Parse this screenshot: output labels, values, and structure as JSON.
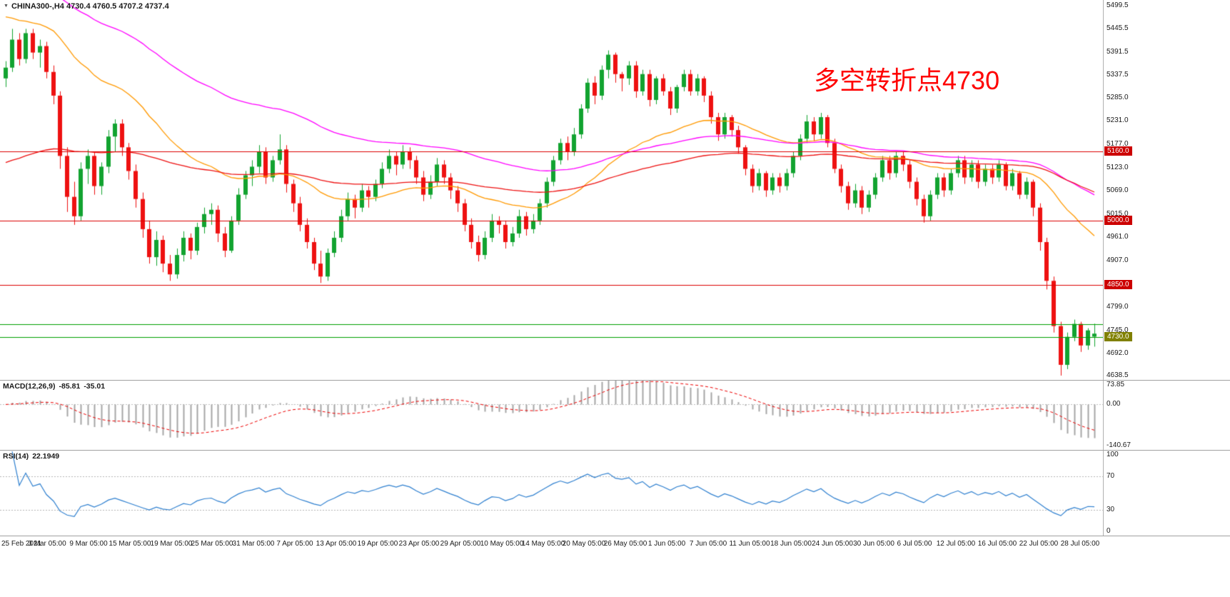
{
  "window": {
    "title_text": "CHINA300-,H4 4730.4 4760.5 4707.2 4737.4",
    "annotation": "多空转折点4730"
  },
  "colors": {
    "background": "#FFFFFF",
    "up": "#12A330",
    "down": "#EE1111",
    "annotation": "#FF0000",
    "hline_red": "#DD0000",
    "hline_green": "#00A000",
    "label_red_bg": "#CC0000",
    "label_olive_bg": "#808000",
    "macd_hist": "#A6A6A6",
    "macd_signal": "#EE0000",
    "rsi_line": "#2F80D0"
  },
  "chart_data": [
    {
      "type": "candlestick",
      "symbol": "CHINA300-",
      "timeframe": "H4",
      "current_bar": {
        "open": 4730.4,
        "high": 4760.5,
        "low": 4707.2,
        "close": 4737.4
      },
      "y_domain": [
        4630,
        5512
      ],
      "y_ticks": [
        "5499.5",
        "5445.5",
        "5391.5",
        "5337.5",
        "5285.0",
        "5231.0",
        "5177.0",
        "5123.0",
        "5069.0",
        "5015.0",
        "4961.0",
        "4907.0",
        "4853.0",
        "4799.0",
        "4745.0",
        "4692.0",
        "4638.5"
      ],
      "x_labels": [
        "25 Feb 2021",
        "3 Mar 05:00",
        "9 Mar 05:00",
        "15 Mar 05:00",
        "19 Mar 05:00",
        "25 Mar 05:00",
        "31 Mar 05:00",
        "7 Apr 05:00",
        "13 Apr 05:00",
        "19 Apr 05:00",
        "23 Apr 05:00",
        "29 Apr 05:00",
        "10 May 05:00",
        "14 May 05:00",
        "20 May 05:00",
        "26 May 05:00",
        "1 Jun 05:00",
        "7 Jun 05:00",
        "11 Jun 05:00",
        "18 Jun 05:00",
        "24 Jun 05:00",
        "30 Jun 05:00",
        "6 Jul 05:00",
        "12 Jul 05:00",
        "16 Jul 05:00",
        "22 Jul 05:00",
        "28 Jul 05:00"
      ],
      "up_color": "#12A330",
      "down_color": "#EE1111",
      "hlines": [
        {
          "value": 5160.0,
          "label": "5160.0",
          "color": "#DD0000",
          "label_bg": "#CC0000"
        },
        {
          "value": 5000.0,
          "label": "5000.0",
          "color": "#DD0000",
          "label_bg": "#CC0000"
        },
        {
          "value": 4850.0,
          "label": "4850.0",
          "color": "#DD0000",
          "label_bg": "#CC0000"
        },
        {
          "value": 4760.0,
          "label": "",
          "color": "#00A000",
          "label_bg": ""
        },
        {
          "value": 4730.0,
          "label": "4730.0",
          "color": "#00A000",
          "label_bg": "#808000"
        }
      ],
      "moving_averages": [
        {
          "period": 34,
          "color": "#FF9900",
          "seed": 5480
        },
        {
          "period": 80,
          "color": "#FF00FF",
          "seed": 5560
        },
        {
          "period": 100,
          "color": "#EE1111",
          "seed": 5130
        }
      ],
      "candles": [
        [
          5330,
          5370,
          5310,
          5355
        ],
        [
          5355,
          5445,
          5345,
          5420
        ],
        [
          5420,
          5435,
          5360,
          5375
        ],
        [
          5375,
          5445,
          5365,
          5435
        ],
        [
          5435,
          5445,
          5375,
          5390
        ],
        [
          5390,
          5420,
          5355,
          5405
        ],
        [
          5405,
          5415,
          5330,
          5345
        ],
        [
          5345,
          5360,
          5270,
          5290
        ],
        [
          5290,
          5300,
          5120,
          5150
        ],
        [
          5150,
          5170,
          5020,
          5055
        ],
        [
          5055,
          5090,
          4990,
          5010
        ],
        [
          5010,
          5135,
          5000,
          5120
        ],
        [
          5120,
          5165,
          5085,
          5150
        ],
        [
          5150,
          5160,
          5060,
          5080
        ],
        [
          5080,
          5135,
          5060,
          5125
        ],
        [
          5125,
          5210,
          5110,
          5195
        ],
        [
          5195,
          5235,
          5160,
          5225
        ],
        [
          5225,
          5235,
          5150,
          5170
        ],
        [
          5170,
          5180,
          5095,
          5115
        ],
        [
          5115,
          5130,
          5030,
          5050
        ],
        [
          5050,
          5065,
          4960,
          4980
        ],
        [
          4980,
          5000,
          4900,
          4915
        ],
        [
          4915,
          4975,
          4895,
          4955
        ],
        [
          4955,
          4965,
          4880,
          4900
        ],
        [
          4900,
          4920,
          4860,
          4875
        ],
        [
          4875,
          4935,
          4865,
          4920
        ],
        [
          4920,
          4975,
          4905,
          4960
        ],
        [
          4960,
          4970,
          4910,
          4930
        ],
        [
          4930,
          4995,
          4920,
          4985
        ],
        [
          4985,
          5030,
          4970,
          5015
        ],
        [
          5015,
          5040,
          4990,
          5025
        ],
        [
          5025,
          5035,
          4950,
          4970
        ],
        [
          4970,
          4985,
          4915,
          4930
        ],
        [
          4930,
          5010,
          4925,
          5000
        ],
        [
          5000,
          5075,
          4990,
          5060
        ],
        [
          5060,
          5115,
          5050,
          5105
        ],
        [
          5105,
          5140,
          5080,
          5125
        ],
        [
          5125,
          5175,
          5110,
          5160
        ],
        [
          5160,
          5170,
          5085,
          5100
        ],
        [
          5100,
          5150,
          5090,
          5140
        ],
        [
          5140,
          5200,
          5130,
          5165
        ],
        [
          5165,
          5175,
          5065,
          5085
        ],
        [
          5085,
          5095,
          5020,
          5040
        ],
        [
          5040,
          5055,
          4975,
          4990
        ],
        [
          4990,
          5005,
          4935,
          4950
        ],
        [
          4950,
          4960,
          4885,
          4900
        ],
        [
          4900,
          4930,
          4855,
          4870
        ],
        [
          4870,
          4935,
          4860,
          4925
        ],
        [
          4925,
          4975,
          4915,
          4960
        ],
        [
          4960,
          5025,
          4950,
          5010
        ],
        [
          5010,
          5065,
          5000,
          5050
        ],
        [
          5050,
          5060,
          5005,
          5030
        ],
        [
          5030,
          5085,
          5020,
          5070
        ],
        [
          5070,
          5080,
          5030,
          5055
        ],
        [
          5055,
          5095,
          5045,
          5085
        ],
        [
          5085,
          5135,
          5075,
          5120
        ],
        [
          5120,
          5165,
          5110,
          5150
        ],
        [
          5150,
          5160,
          5105,
          5130
        ],
        [
          5130,
          5175,
          5120,
          5160
        ],
        [
          5160,
          5170,
          5120,
          5140
        ],
        [
          5140,
          5150,
          5085,
          5100
        ],
        [
          5100,
          5115,
          5045,
          5060
        ],
        [
          5060,
          5105,
          5050,
          5090
        ],
        [
          5090,
          5145,
          5080,
          5130
        ],
        [
          5130,
          5140,
          5085,
          5100
        ],
        [
          5100,
          5110,
          5050,
          5070
        ],
        [
          5070,
          5080,
          5020,
          5040
        ],
        [
          5040,
          5050,
          4975,
          4990
        ],
        [
          4990,
          5005,
          4935,
          4950
        ],
        [
          4950,
          4965,
          4905,
          4920
        ],
        [
          4920,
          4975,
          4910,
          4960
        ],
        [
          4960,
          5015,
          4950,
          5000
        ],
        [
          5000,
          5010,
          4970,
          4990
        ],
        [
          4990,
          5000,
          4935,
          4950
        ],
        [
          4950,
          4985,
          4940,
          4970
        ],
        [
          4970,
          5025,
          4960,
          5010
        ],
        [
          5010,
          5020,
          4965,
          4980
        ],
        [
          4980,
          5015,
          4970,
          5000
        ],
        [
          5000,
          5050,
          4990,
          5040
        ],
        [
          5040,
          5100,
          5030,
          5090
        ],
        [
          5090,
          5150,
          5080,
          5140
        ],
        [
          5140,
          5190,
          5130,
          5180
        ],
        [
          5180,
          5195,
          5140,
          5160
        ],
        [
          5160,
          5215,
          5150,
          5200
        ],
        [
          5200,
          5270,
          5190,
          5260
        ],
        [
          5260,
          5330,
          5250,
          5320
        ],
        [
          5320,
          5335,
          5270,
          5290
        ],
        [
          5290,
          5360,
          5280,
          5350
        ],
        [
          5350,
          5395,
          5330,
          5385
        ],
        [
          5385,
          5390,
          5320,
          5340
        ],
        [
          5340,
          5345,
          5300,
          5330
        ],
        [
          5330,
          5370,
          5315,
          5360
        ],
        [
          5360,
          5370,
          5285,
          5300
        ],
        [
          5300,
          5350,
          5290,
          5340
        ],
        [
          5340,
          5350,
          5265,
          5280
        ],
        [
          5280,
          5335,
          5270,
          5330
        ],
        [
          5330,
          5340,
          5290,
          5300
        ],
        [
          5300,
          5310,
          5245,
          5260
        ],
        [
          5260,
          5315,
          5250,
          5310
        ],
        [
          5310,
          5350,
          5300,
          5340
        ],
        [
          5340,
          5350,
          5290,
          5300
        ],
        [
          5300,
          5340,
          5290,
          5330
        ],
        [
          5330,
          5335,
          5275,
          5290
        ],
        [
          5290,
          5300,
          5225,
          5240
        ],
        [
          5240,
          5250,
          5185,
          5200
        ],
        [
          5200,
          5250,
          5190,
          5240
        ],
        [
          5240,
          5245,
          5195,
          5210
        ],
        [
          5210,
          5220,
          5155,
          5170
        ],
        [
          5170,
          5175,
          5105,
          5120
        ],
        [
          5120,
          5130,
          5065,
          5080
        ],
        [
          5080,
          5120,
          5070,
          5110
        ],
        [
          5110,
          5115,
          5055,
          5070
        ],
        [
          5070,
          5110,
          5060,
          5100
        ],
        [
          5100,
          5110,
          5065,
          5080
        ],
        [
          5080,
          5120,
          5070,
          5110
        ],
        [
          5110,
          5160,
          5100,
          5150
        ],
        [
          5150,
          5200,
          5140,
          5190
        ],
        [
          5190,
          5245,
          5180,
          5230
        ],
        [
          5230,
          5240,
          5185,
          5200
        ],
        [
          5200,
          5250,
          5190,
          5240
        ],
        [
          5240,
          5245,
          5170,
          5180
        ],
        [
          5180,
          5190,
          5110,
          5120
        ],
        [
          5120,
          5130,
          5065,
          5080
        ],
        [
          5080,
          5090,
          5025,
          5040
        ],
        [
          5040,
          5085,
          5030,
          5070
        ],
        [
          5070,
          5080,
          5015,
          5030
        ],
        [
          5030,
          5070,
          5020,
          5060
        ],
        [
          5060,
          5110,
          5050,
          5100
        ],
        [
          5100,
          5150,
          5090,
          5140
        ],
        [
          5140,
          5150,
          5095,
          5110
        ],
        [
          5110,
          5160,
          5100,
          5150
        ],
        [
          5150,
          5160,
          5115,
          5130
        ],
        [
          5130,
          5140,
          5075,
          5090
        ],
        [
          5090,
          5100,
          5035,
          5050
        ],
        [
          5050,
          5060,
          4995,
          5010
        ],
        [
          5010,
          5070,
          5000,
          5060
        ],
        [
          5060,
          5110,
          5050,
          5100
        ],
        [
          5100,
          5110,
          5055,
          5070
        ],
        [
          5070,
          5120,
          5060,
          5110
        ],
        [
          5110,
          5150,
          5100,
          5140
        ],
        [
          5140,
          5150,
          5085,
          5100
        ],
        [
          5100,
          5140,
          5090,
          5130
        ],
        [
          5130,
          5140,
          5075,
          5090
        ],
        [
          5090,
          5130,
          5080,
          5120
        ],
        [
          5120,
          5130,
          5085,
          5100
        ],
        [
          5100,
          5140,
          5090,
          5130
        ],
        [
          5130,
          5135,
          5070,
          5080
        ],
        [
          5080,
          5120,
          5070,
          5110
        ],
        [
          5110,
          5115,
          5050,
          5060
        ],
        [
          5060,
          5100,
          5050,
          5090
        ],
        [
          5090,
          5095,
          5010,
          5030
        ],
        [
          5030,
          5040,
          4930,
          4950
        ],
        [
          4950,
          4960,
          4840,
          4860
        ],
        [
          4860,
          4870,
          4740,
          4755
        ],
        [
          4755,
          4765,
          4640,
          4665
        ],
        [
          4665,
          4740,
          4655,
          4730
        ],
        [
          4730,
          4770,
          4720,
          4760
        ],
        [
          4760,
          4765,
          4695,
          4710
        ],
        [
          4710,
          4750,
          4700,
          4745
        ],
        [
          4730.4,
          4760.5,
          4707.2,
          4737.4
        ]
      ]
    },
    {
      "type": "macd",
      "title": "MACD(12,26,9)",
      "value_macd": "-85.81",
      "value_signal": "-35.01",
      "fast": 12,
      "slow": 26,
      "signal": 9,
      "y_domain": [
        -140.67,
        73.85
      ],
      "y_ticks": [
        "73.85",
        "0.00",
        "-140.67"
      ]
    },
    {
      "type": "rsi",
      "title": "RSI(14)",
      "value": "22.1949",
      "period": 14,
      "y_domain": [
        0,
        100
      ],
      "levels": [
        70,
        30
      ],
      "y_ticks": [
        "100",
        "70",
        "30",
        "0"
      ]
    }
  ]
}
